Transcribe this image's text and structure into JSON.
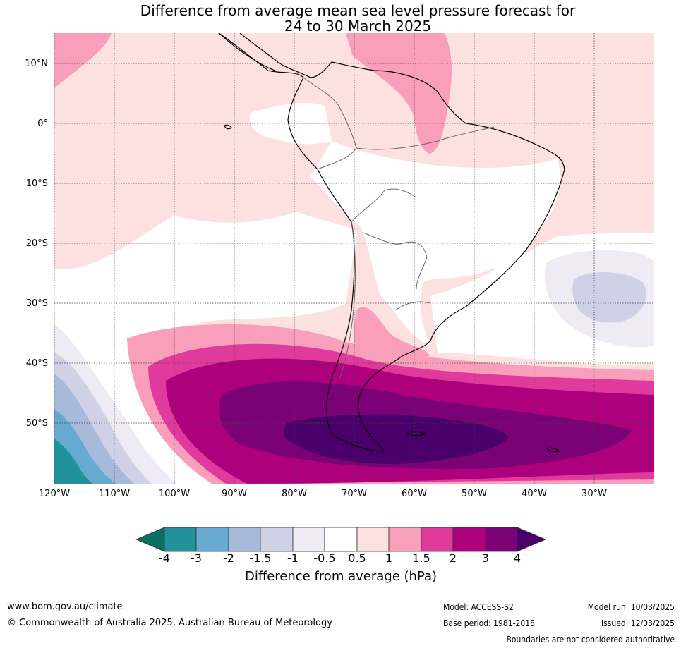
{
  "map": {
    "title_line1": "Difference from average mean sea level pressure forecast for",
    "title_line2": "24 to 30 March 2025",
    "lat_labels": [
      "10°N",
      "0°",
      "10°S",
      "20°S",
      "30°S",
      "40°S",
      "50°S"
    ],
    "lon_labels": [
      "120°W",
      "110°W",
      "100°W",
      "90°W",
      "80°W",
      "70°W",
      "60°W",
      "50°W",
      "40°W",
      "30°W"
    ]
  },
  "colorbar": {
    "title": "Difference from average (hPa)",
    "tick_labels": [
      "-4",
      "-3",
      "-2",
      "-1.5",
      "-1",
      "-0.5",
      "0.5",
      "1",
      "1.5",
      "2",
      "3",
      "4"
    ],
    "colors": {
      "below_min": "#0c6e5e",
      "minus4_minus3": "#21929b",
      "minus3_minus2": "#66aad2",
      "minus2_minus1_5": "#a8bad9",
      "minus1_5_minus1": "#d0d1e6",
      "minus1_minus0_5": "#efebf4",
      "neutral": "#ffffff",
      "p0_5_1": "#fde0e0",
      "p1_1_5": "#f99fbb",
      "p1_5_2": "#df3a9c",
      "p2_3": "#ae007d",
      "p3_4": "#7a0176",
      "above_max": "#4a006a"
    }
  },
  "footer": {
    "website": "www.bom.gov.au/climate",
    "copyright": "© Commonwealth of Australia 2025, Australian Bureau of Meteorology",
    "model": "Model: ACCESS-S2",
    "base_period": "Base period: 1981-2018",
    "model_run": "Model run: 10/03/2025",
    "issued": "Issued: 12/03/2025",
    "boundaries_note": "Boundaries are not considered authoritative"
  }
}
